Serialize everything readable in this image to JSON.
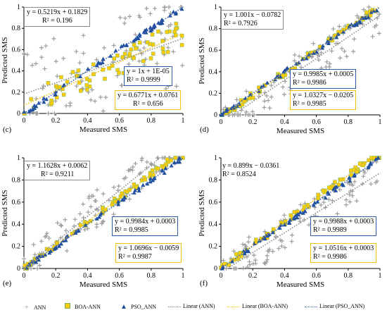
{
  "colors": {
    "ann": "#9e9e9e",
    "boa": "#ffcc00",
    "pso": "#1f4e9a",
    "linAnn": "#8c8c8c",
    "linBoa": "#f4c20d",
    "linPso": "#3a63c4",
    "boxAnn": "#8c8c8c",
    "boxBoa": "#f4c20d",
    "boxPso": "#2e5ca8"
  },
  "legend": {
    "ann": "ANN",
    "boa": "BOA-ANN",
    "pso": "PSO_ANN",
    "lin_ann": "Linear (ANN)",
    "lin_boa": "Linear (BOA-ANN)",
    "lin_pso": "Linear (PSO_ANN)"
  },
  "chart_data": [
    {
      "type": "scatter",
      "panel": "(c)",
      "xlabel": "Measured SMS",
      "ylabel": "Predicted SMS",
      "xlim": [
        0,
        1
      ],
      "ylim": [
        0,
        1
      ],
      "xticks": [
        "0",
        "0.2",
        "0.4",
        "0.6",
        "0.8",
        "1"
      ],
      "yticks": [
        "0",
        "0.2",
        "0.4",
        "0.6",
        "0.8",
        "1"
      ],
      "series": [
        {
          "name": "ANN",
          "eq_line1": "y = 0.5219x + 0.1829",
          "eq_line2": "R² = 0.196",
          "slope": 0.5219,
          "intercept": 0.1829
        },
        {
          "name": "BOA-ANN",
          "eq_line1": "y = 0.6771x + 0.0761",
          "eq_line2": "R² = 0.656",
          "slope": 0.6771,
          "intercept": 0.0761
        },
        {
          "name": "PSO_ANN",
          "eq_line1": "y = 1x + 1E-05",
          "eq_line2": "R² = 0.9999",
          "slope": 1.0,
          "intercept": 1e-05
        }
      ]
    },
    {
      "type": "scatter",
      "panel": "(d)",
      "xlabel": "Measured SMS",
      "ylabel": "Predicted SMS",
      "xlim": [
        0,
        1
      ],
      "ylim": [
        0,
        1
      ],
      "xticks": [
        "0",
        "0.2",
        "0.4",
        "0.6",
        "0.8",
        "1"
      ],
      "yticks": [
        "0",
        "0.2",
        "0.4",
        "0.6",
        "0.8",
        "1"
      ],
      "series": [
        {
          "name": "ANN",
          "eq_line1": "y = 1.001x − 0.0782",
          "eq_line2": "R² = 0.7926",
          "slope": 1.001,
          "intercept": -0.0782
        },
        {
          "name": "BOA-ANN",
          "eq_line1": "y = 1.0327x − 0.0205",
          "eq_line2": "R² = 0.9985",
          "slope": 1.0327,
          "intercept": -0.0205
        },
        {
          "name": "PSO_ANN",
          "eq_line1": "y = 0.9985x + 0.0005",
          "eq_line2": "R² = 0.9986",
          "slope": 0.9985,
          "intercept": 0.0005
        }
      ]
    },
    {
      "type": "scatter",
      "panel": "(e)",
      "xlabel": "Measured SMS",
      "ylabel": "Predicted SMS",
      "xlim": [
        0,
        1
      ],
      "ylim": [
        0,
        1
      ],
      "xticks": [
        "0",
        "0.2",
        "0.4",
        "0.6",
        "0.8",
        "1"
      ],
      "yticks": [
        "0",
        "0.2",
        "0.4",
        "0.6",
        "0.8",
        "1"
      ],
      "series": [
        {
          "name": "ANN",
          "eq_line1": "y = 1.1628x + 0.0062",
          "eq_line2": "R² = 0.9211",
          "slope": 1.1628,
          "intercept": 0.0062
        },
        {
          "name": "BOA-ANN",
          "eq_line1": "y = 1.0696x − 0.0059",
          "eq_line2": "R² = 0.9987",
          "slope": 1.0696,
          "intercept": -0.0059
        },
        {
          "name": "PSO_ANN",
          "eq_line1": "y = 0.9984x + 0.0003",
          "eq_line2": "R² = 0.9985",
          "slope": 0.9984,
          "intercept": 0.0003
        }
      ]
    },
    {
      "type": "scatter",
      "panel": "(f)",
      "xlabel": "Measured SMS",
      "ylabel": "Predicted SMS",
      "xlim": [
        0,
        1
      ],
      "ylim": [
        0,
        1
      ],
      "xticks": [
        "0",
        "0.2",
        "0.4",
        "0.6",
        "0.8",
        "1"
      ],
      "yticks": [
        "0",
        "0.2",
        "0.4",
        "0.6",
        "0.8",
        "1"
      ],
      "series": [
        {
          "name": "ANN",
          "eq_line1": "y = 0.899x − 0.0361",
          "eq_line2": "R² = 0.8524",
          "slope": 0.899,
          "intercept": -0.0361
        },
        {
          "name": "BOA-ANN",
          "eq_line1": "y = 1.0516x + 0.0003",
          "eq_line2": "R² = 0.9986",
          "slope": 1.0516,
          "intercept": 0.0003
        },
        {
          "name": "PSO_ANN",
          "eq_line1": "y = 0.9988x + 0.0003",
          "eq_line2": "R² = 0.9989",
          "slope": 0.9988,
          "intercept": 0.0003
        }
      ]
    }
  ]
}
